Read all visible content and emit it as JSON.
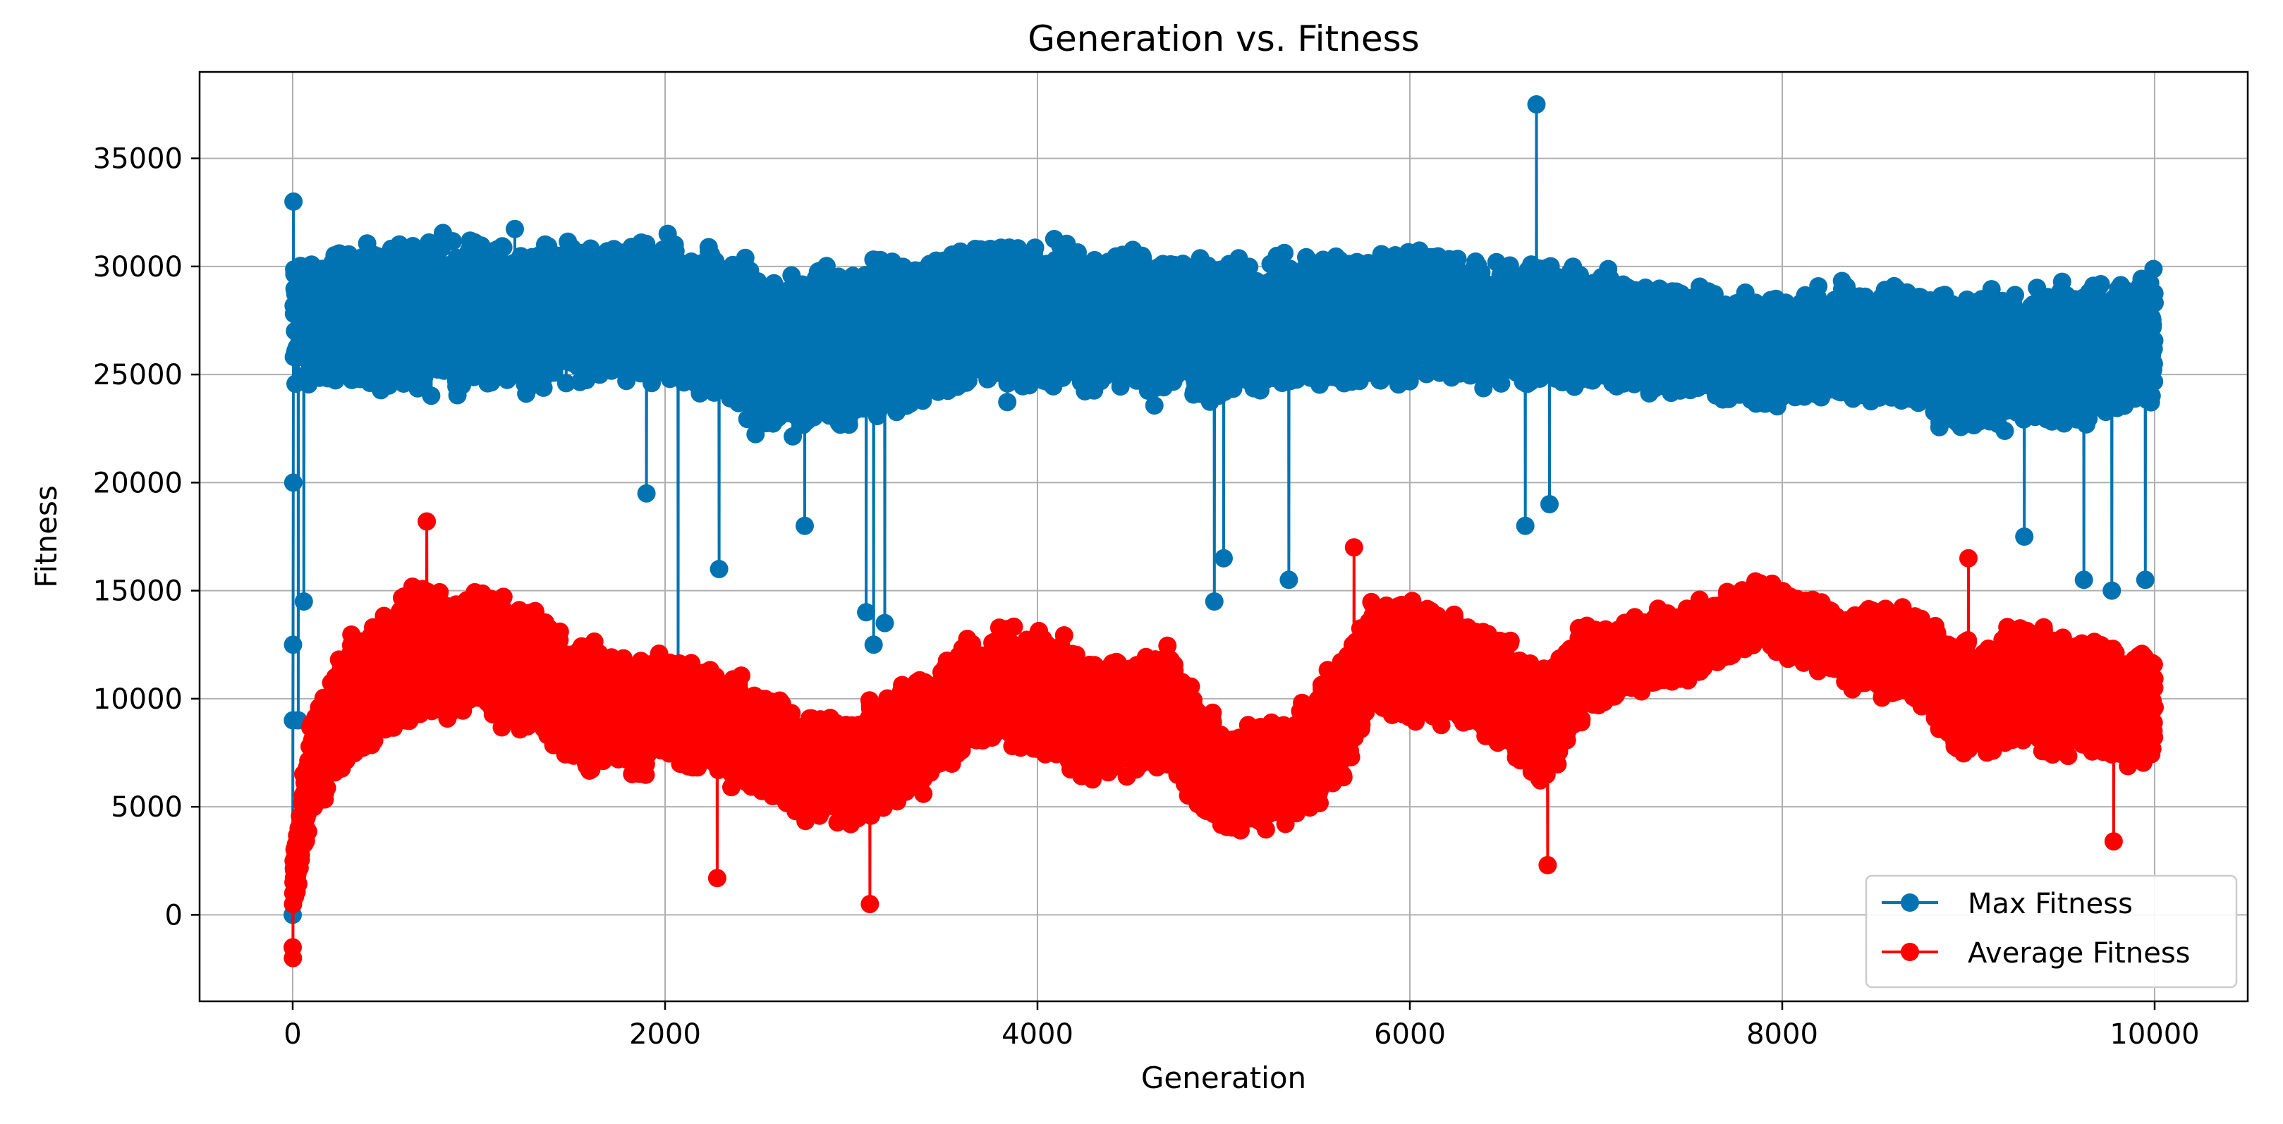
{
  "chart_data": {
    "type": "line",
    "title": "Generation vs. Fitness",
    "xlabel": "Generation",
    "ylabel": "Fitness",
    "xlim": [
      -500,
      10500
    ],
    "ylim": [
      -4000,
      39000
    ],
    "xticks": [
      0,
      2000,
      4000,
      6000,
      8000,
      10000
    ],
    "yticks": [
      0,
      5000,
      10000,
      15000,
      20000,
      25000,
      30000,
      35000
    ],
    "xtick_labels": [
      "0",
      "2000",
      "4000",
      "6000",
      "8000",
      "10000"
    ],
    "ytick_labels": [
      "0",
      "5000",
      "10000",
      "15000",
      "20000",
      "25000",
      "30000",
      "35000"
    ],
    "grid": true,
    "legend_position": "lower-right",
    "x_range": [
      0,
      10000
    ],
    "point_count": 10001,
    "series": [
      {
        "name": "Max Fitness",
        "color": "#0173b2",
        "marker": "circle",
        "start_values": [
          0,
          9000,
          12500,
          20000,
          33000
        ],
        "profile_generations": [
          0,
          300,
          800,
          1300,
          1900,
          2300,
          2700,
          3100,
          3500,
          4000,
          4500,
          5000,
          5500,
          6000,
          6500,
          7000,
          7500,
          8000,
          8500,
          9000,
          9500,
          10000
        ],
        "profile_center": [
          27500,
          27500,
          27800,
          27800,
          28000,
          27000,
          26000,
          26500,
          27500,
          27500,
          27500,
          27000,
          27500,
          27800,
          27500,
          27000,
          26500,
          26000,
          26500,
          25500,
          26000,
          26500
        ],
        "profile_spread": [
          3200,
          3500,
          3600,
          3500,
          3400,
          3800,
          3800,
          3900,
          3600,
          3500,
          3400,
          3300,
          3200,
          3100,
          3000,
          2800,
          2700,
          2600,
          2900,
          3200,
          3200,
          3200
        ],
        "peak_generation": 6680,
        "peak_value": 37500,
        "dips": [
          {
            "generation": 30,
            "value": 9000
          },
          {
            "generation": 60,
            "value": 14500
          },
          {
            "generation": 1900,
            "value": 19500
          },
          {
            "generation": 2070,
            "value": 11000
          },
          {
            "generation": 2290,
            "value": 16000
          },
          {
            "generation": 2750,
            "value": 18000
          },
          {
            "generation": 3080,
            "value": 14000
          },
          {
            "generation": 3120,
            "value": 12500
          },
          {
            "generation": 3180,
            "value": 13500
          },
          {
            "generation": 4950,
            "value": 14500
          },
          {
            "generation": 5000,
            "value": 16500
          },
          {
            "generation": 5350,
            "value": 15500
          },
          {
            "generation": 6620,
            "value": 18000
          },
          {
            "generation": 6750,
            "value": 19000
          },
          {
            "generation": 9300,
            "value": 17500
          },
          {
            "generation": 9620,
            "value": 15500
          },
          {
            "generation": 9770,
            "value": 15000
          },
          {
            "generation": 9950,
            "value": 15500
          }
        ]
      },
      {
        "name": "Average Fitness",
        "color": "#ff0000",
        "marker": "circle",
        "start_values": [
          -1500,
          -2000,
          500,
          1000,
          1500,
          2500
        ],
        "profile_generations": [
          0,
          100,
          300,
          700,
          1000,
          1300,
          1600,
          1900,
          2300,
          2700,
          3000,
          3300,
          3700,
          4000,
          4300,
          4700,
          5000,
          5300,
          5600,
          5800,
          6100,
          6400,
          6700,
          6900,
          7200,
          7600,
          7900,
          8300,
          8700,
          9000,
          9300,
          9600,
          10000
        ],
        "profile_center": [
          1000,
          7000,
          10000,
          12000,
          12000,
          11000,
          9500,
          9500,
          9000,
          7000,
          6500,
          8000,
          10500,
          10500,
          9000,
          9500,
          6000,
          6500,
          8500,
          12000,
          11500,
          11000,
          8500,
          11000,
          12000,
          13000,
          14000,
          12500,
          12000,
          10000,
          10500,
          10000,
          9500
        ],
        "profile_spread": [
          1500,
          2500,
          3000,
          3200,
          3000,
          2900,
          2800,
          2700,
          2800,
          2600,
          2600,
          2700,
          2700,
          2800,
          2800,
          2800,
          2500,
          2600,
          2900,
          2800,
          2700,
          2700,
          2800,
          2200,
          1800,
          1700,
          1600,
          1800,
          2200,
          2800,
          2800,
          2800,
          2700
        ],
        "peak_generation": 720,
        "peak_value": 18200,
        "extremes": [
          {
            "generation": 3100,
            "value": 500
          },
          {
            "generation": 6740,
            "value": 2300
          },
          {
            "generation": 2280,
            "value": 1700
          },
          {
            "generation": 9780,
            "value": 3400
          },
          {
            "generation": 5700,
            "value": 17000
          },
          {
            "generation": 9000,
            "value": 16500
          }
        ]
      }
    ]
  }
}
